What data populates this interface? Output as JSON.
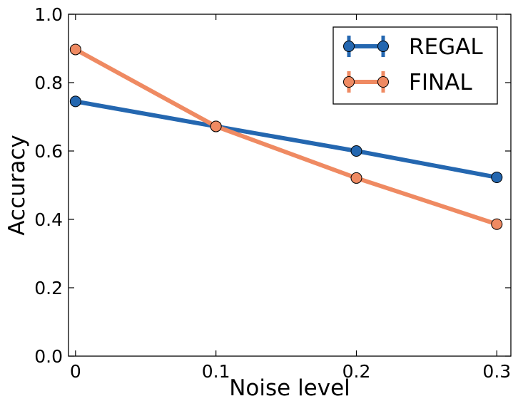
{
  "chart_data": {
    "type": "line",
    "title": "",
    "xlabel": "Noise level",
    "ylabel": "Accuracy",
    "x": [
      0,
      0.1,
      0.2,
      0.3
    ],
    "x_tick_labels": [
      "0",
      "0.1",
      "0.2",
      "0.3"
    ],
    "xlim": [
      -0.005,
      0.31
    ],
    "ylim": [
      0.0,
      1.0
    ],
    "y_ticks": [
      0.0,
      0.2,
      0.4,
      0.6,
      0.8,
      1.0
    ],
    "y_tick_labels": [
      "0.0",
      "0.2",
      "0.4",
      "0.6",
      "0.8",
      "1.0"
    ],
    "grid": false,
    "legend_position": "top-right",
    "series": [
      {
        "name": "REGAL",
        "values": [
          0.745,
          0.672,
          0.6,
          0.523
        ],
        "color": "#2467b0"
      },
      {
        "name": "FINAL",
        "values": [
          0.897,
          0.672,
          0.521,
          0.386
        ],
        "color": "#ef8a62"
      }
    ]
  }
}
